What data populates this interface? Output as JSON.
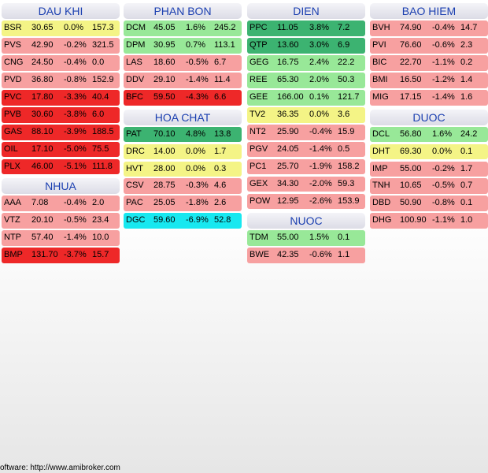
{
  "colors": {
    "strong_up": "#3cb371",
    "up": "#98e898",
    "flat": "#f4f486",
    "down": "#f7a0a0",
    "down_mid": "#f06060",
    "strong_down": "#ee2828",
    "floor": "#18e8f0",
    "header_text": "#1b3fb0"
  },
  "columns": [
    {
      "groups": [
        {
          "title": "DAU KHI",
          "rows": [
            {
              "sym": "BSR",
              "price": "30.65",
              "chg": "0.0%",
              "vol": "157.3",
              "level": "flat"
            },
            {
              "sym": "PVS",
              "price": "42.90",
              "chg": "-0.2%",
              "vol": "321.5",
              "level": "down"
            },
            {
              "sym": "CNG",
              "price": "24.50",
              "chg": "-0.4%",
              "vol": "0.0",
              "level": "down"
            },
            {
              "sym": "PVD",
              "price": "36.80",
              "chg": "-0.8%",
              "vol": "152.9",
              "level": "down"
            },
            {
              "sym": "PVC",
              "price": "17.80",
              "chg": "-3.3%",
              "vol": "40.4",
              "level": "strong_down"
            },
            {
              "sym": "PVB",
              "price": "30.60",
              "chg": "-3.8%",
              "vol": "6.0",
              "level": "strong_down"
            },
            {
              "sym": "GAS",
              "price": "88.10",
              "chg": "-3.9%",
              "vol": "188.5",
              "level": "strong_down"
            },
            {
              "sym": "OIL",
              "price": "17.10",
              "chg": "-5.0%",
              "vol": "75.5",
              "level": "strong_down"
            },
            {
              "sym": "PLX",
              "price": "46.00",
              "chg": "-5.1%",
              "vol": "111.8",
              "level": "strong_down"
            }
          ]
        },
        {
          "title": "NHUA",
          "rows": [
            {
              "sym": "AAA",
              "price": "7.08",
              "chg": "-0.4%",
              "vol": "2.0",
              "level": "down"
            },
            {
              "sym": "VTZ",
              "price": "20.10",
              "chg": "-0.5%",
              "vol": "23.4",
              "level": "down"
            },
            {
              "sym": "NTP",
              "price": "57.40",
              "chg": "-1.4%",
              "vol": "10.0",
              "level": "down"
            },
            {
              "sym": "BMP",
              "price": "131.70",
              "chg": "-3.7%",
              "vol": "15.7",
              "level": "strong_down"
            }
          ]
        }
      ]
    },
    {
      "groups": [
        {
          "title": "PHAN BON",
          "rows": [
            {
              "sym": "DCM",
              "price": "45.05",
              "chg": "1.6%",
              "vol": "245.2",
              "level": "up"
            },
            {
              "sym": "DPM",
              "price": "30.95",
              "chg": "0.7%",
              "vol": "113.1",
              "level": "up"
            },
            {
              "sym": "LAS",
              "price": "18.60",
              "chg": "-0.5%",
              "vol": "6.7",
              "level": "down"
            },
            {
              "sym": "DDV",
              "price": "29.10",
              "chg": "-1.4%",
              "vol": "11.4",
              "level": "down"
            },
            {
              "sym": "BFC",
              "price": "59.50",
              "chg": "-4.3%",
              "vol": "6.6",
              "level": "strong_down"
            }
          ]
        },
        {
          "title": "HOA CHAT",
          "rows": [
            {
              "sym": "PAT",
              "price": "70.10",
              "chg": "4.8%",
              "vol": "13.8",
              "level": "strong_up"
            },
            {
              "sym": "DRC",
              "price": "14.00",
              "chg": "0.0%",
              "vol": "1.7",
              "level": "flat"
            },
            {
              "sym": "HVT",
              "price": "28.00",
              "chg": "0.0%",
              "vol": "0.3",
              "level": "flat"
            },
            {
              "sym": "CSV",
              "price": "28.75",
              "chg": "-0.3%",
              "vol": "4.6",
              "level": "down"
            },
            {
              "sym": "PAC",
              "price": "25.05",
              "chg": "-1.8%",
              "vol": "2.6",
              "level": "down"
            },
            {
              "sym": "DGC",
              "price": "59.60",
              "chg": "-6.9%",
              "vol": "52.8",
              "level": "floor"
            }
          ]
        }
      ]
    },
    {
      "groups": [
        {
          "title": "DIEN",
          "rows": [
            {
              "sym": "PPC",
              "price": "11.05",
              "chg": "3.8%",
              "vol": "7.2",
              "level": "strong_up"
            },
            {
              "sym": "QTP",
              "price": "13.60",
              "chg": "3.0%",
              "vol": "6.9",
              "level": "strong_up"
            },
            {
              "sym": "GEG",
              "price": "16.75",
              "chg": "2.4%",
              "vol": "22.2",
              "level": "up"
            },
            {
              "sym": "REE",
              "price": "65.30",
              "chg": "2.0%",
              "vol": "50.3",
              "level": "up"
            },
            {
              "sym": "GEE",
              "price": "166.00",
              "chg": "0.1%",
              "vol": "121.7",
              "level": "up"
            },
            {
              "sym": "TV2",
              "price": "36.35",
              "chg": "0.0%",
              "vol": "3.6",
              "level": "flat"
            },
            {
              "sym": "NT2",
              "price": "25.90",
              "chg": "-0.4%",
              "vol": "15.9",
              "level": "down"
            },
            {
              "sym": "PGV",
              "price": "24.05",
              "chg": "-1.4%",
              "vol": "0.5",
              "level": "down"
            },
            {
              "sym": "PC1",
              "price": "25.70",
              "chg": "-1.9%",
              "vol": "158.2",
              "level": "down"
            },
            {
              "sym": "GEX",
              "price": "34.30",
              "chg": "-2.0%",
              "vol": "59.3",
              "level": "down"
            },
            {
              "sym": "POW",
              "price": "12.95",
              "chg": "-2.6%",
              "vol": "153.9",
              "level": "down"
            }
          ]
        },
        {
          "title": "NUOC",
          "rows": [
            {
              "sym": "TDM",
              "price": "55.00",
              "chg": "1.5%",
              "vol": "0.1",
              "level": "up"
            },
            {
              "sym": "BWE",
              "price": "42.35",
              "chg": "-0.6%",
              "vol": "1.1",
              "level": "down"
            }
          ]
        }
      ]
    },
    {
      "groups": [
        {
          "title": "BAO HIEM",
          "rows": [
            {
              "sym": "BVH",
              "price": "74.90",
              "chg": "-0.4%",
              "vol": "14.7",
              "level": "down"
            },
            {
              "sym": "PVI",
              "price": "76.60",
              "chg": "-0.6%",
              "vol": "2.3",
              "level": "down"
            },
            {
              "sym": "BIC",
              "price": "22.70",
              "chg": "-1.1%",
              "vol": "0.2",
              "level": "down"
            },
            {
              "sym": "BMI",
              "price": "16.50",
              "chg": "-1.2%",
              "vol": "1.4",
              "level": "down"
            },
            {
              "sym": "MIG",
              "price": "17.15",
              "chg": "-1.4%",
              "vol": "1.6",
              "level": "down"
            }
          ]
        },
        {
          "title": "DUOC",
          "rows": [
            {
              "sym": "DCL",
              "price": "56.80",
              "chg": "1.6%",
              "vol": "24.2",
              "level": "up"
            },
            {
              "sym": "DHT",
              "price": "69.30",
              "chg": "0.0%",
              "vol": "0.1",
              "level": "flat"
            },
            {
              "sym": "IMP",
              "price": "55.00",
              "chg": "-0.2%",
              "vol": "1.7",
              "level": "down"
            },
            {
              "sym": "TNH",
              "price": "10.65",
              "chg": "-0.5%",
              "vol": "0.7",
              "level": "down"
            },
            {
              "sym": "DBD",
              "price": "50.90",
              "chg": "-0.8%",
              "vol": "0.1",
              "level": "down"
            },
            {
              "sym": "DHG",
              "price": "100.90",
              "chg": "-1.1%",
              "vol": "1.0",
              "level": "down"
            }
          ]
        }
      ]
    }
  ],
  "footer": "oftware: http://www.amibroker.com"
}
